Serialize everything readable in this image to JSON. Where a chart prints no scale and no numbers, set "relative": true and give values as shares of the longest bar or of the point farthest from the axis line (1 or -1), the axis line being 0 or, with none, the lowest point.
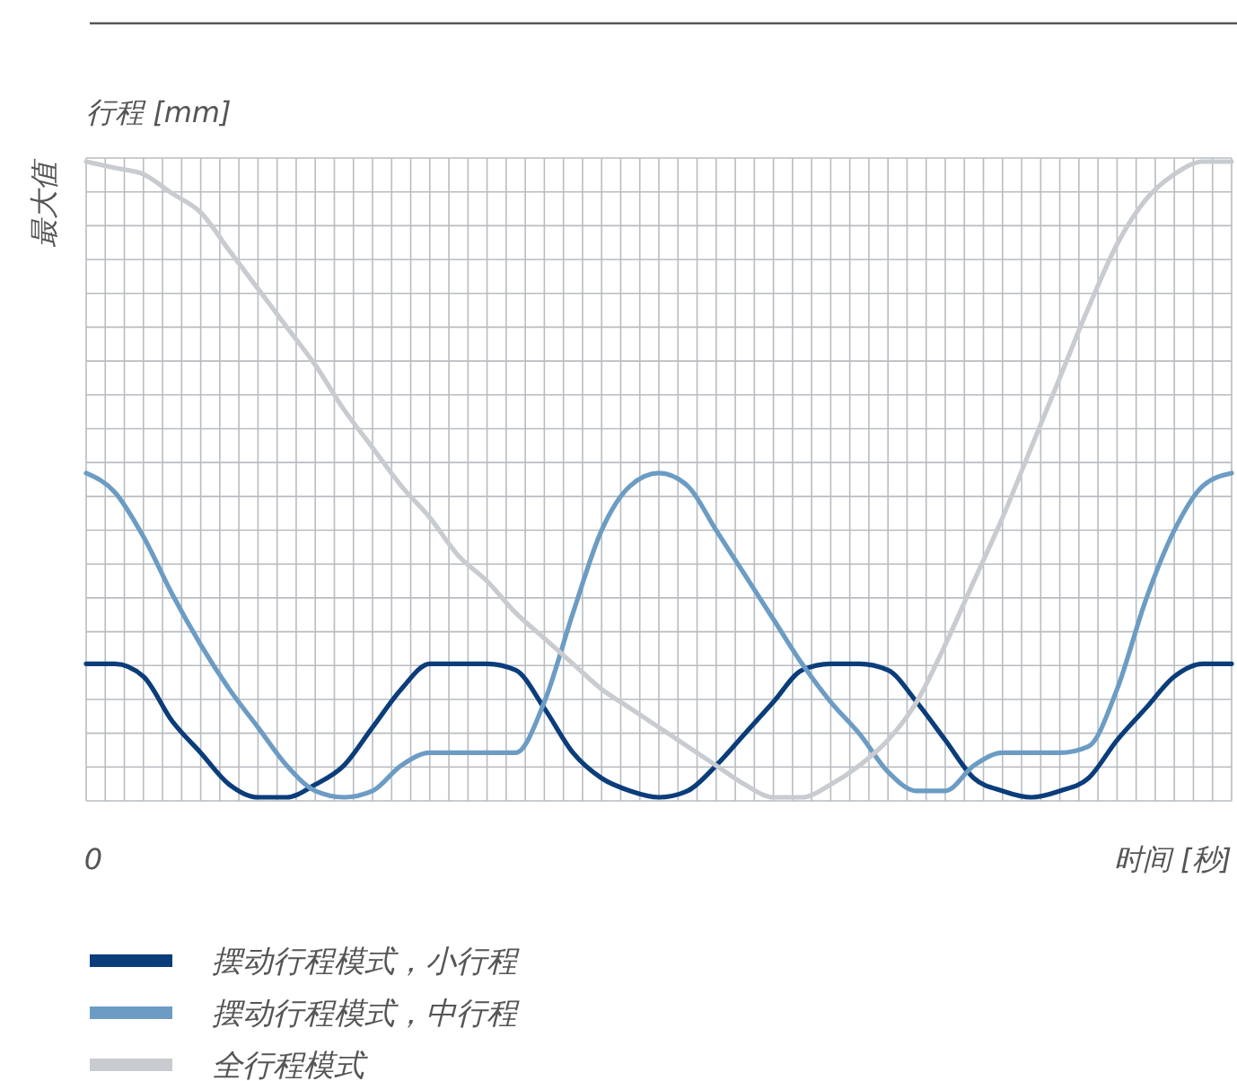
{
  "chart_data": {
    "type": "line",
    "relative": true,
    "ylabel": "行程 [mm]",
    "xlabel": "时间 [秒]",
    "annotations": [
      "最大值",
      "0"
    ],
    "categories": [
      null,
      null,
      null,
      null,
      null,
      null,
      null,
      null,
      null,
      null,
      null,
      null,
      null,
      null,
      null,
      null,
      null,
      null,
      null,
      null,
      null,
      null,
      null,
      null,
      null,
      null,
      null,
      null,
      null,
      null,
      null,
      null,
      null,
      null,
      null,
      null,
      null,
      null,
      null,
      null,
      null
    ],
    "grid": true,
    "legend": "bottom",
    "line_style": "solid",
    "marker": "none",
    "series": [
      {
        "name": "摆动行程模式，小行程",
        "color": "#0b3d7a",
        "values": [
          0.21,
          0.21,
          0.19,
          0.12,
          0.07,
          0.02,
          0,
          0,
          0.02,
          0.05,
          0.11,
          0.17,
          0.21,
          0.21,
          0.21,
          0.2,
          0.14,
          0.07,
          0.03,
          0.01,
          0,
          0.01,
          0.05,
          0.1,
          0.15,
          0.2,
          0.21,
          0.21,
          0.2,
          0.15,
          0.09,
          0.03,
          0.01,
          0,
          0.01,
          0.03,
          0.09,
          0.14,
          0.19,
          0.21,
          0.21
        ]
      },
      {
        "name": "摆动行程模式，中行程",
        "color": "#6c9cc4",
        "values": [
          0.51,
          0.48,
          0.41,
          0.32,
          0.24,
          0.17,
          0.11,
          0.05,
          0.01,
          0,
          0.01,
          0.05,
          0.07,
          0.07,
          0.07,
          0.07,
          0.15,
          0.29,
          0.42,
          0.49,
          0.51,
          0.49,
          0.42,
          0.35,
          0.28,
          0.21,
          0.15,
          0.1,
          0.04,
          0.01,
          0.01,
          0.05,
          0.07,
          0.07,
          0.07,
          0.08,
          0.17,
          0.31,
          0.42,
          0.49,
          0.51
        ]
      },
      {
        "name": "全行程模式",
        "color": "#c8cbd0",
        "values": [
          1,
          0.99,
          0.98,
          0.95,
          0.92,
          0.86,
          0.8,
          0.74,
          0.68,
          0.61,
          0.55,
          0.49,
          0.44,
          0.38,
          0.34,
          0.29,
          0.25,
          0.21,
          0.17,
          0.14,
          0.11,
          0.08,
          0.05,
          0.02,
          0,
          0,
          0.02,
          0.05,
          0.09,
          0.15,
          0.24,
          0.34,
          0.44,
          0.55,
          0.66,
          0.77,
          0.87,
          0.94,
          0.98,
          1,
          1
        ]
      }
    ]
  }
}
